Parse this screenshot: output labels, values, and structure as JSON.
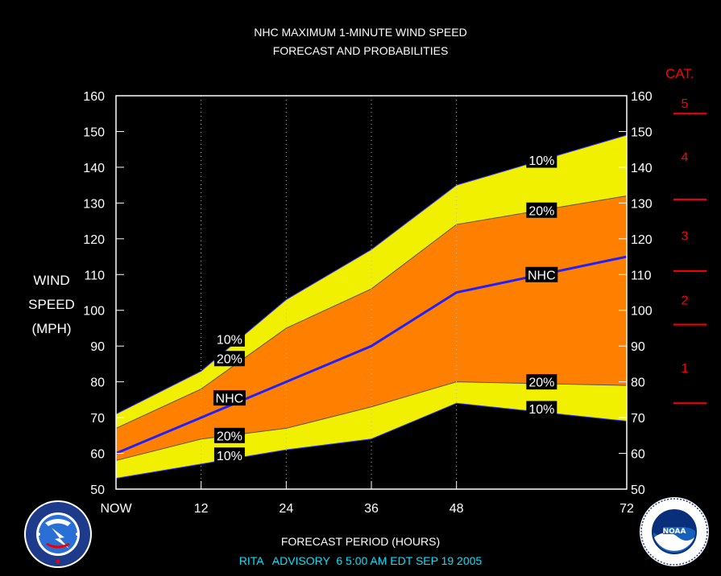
{
  "header": {
    "title_line1": "NHC MAXIMUM 1-MINUTE WIND SPEED",
    "title_line2": "FORECAST AND PROBABILITIES"
  },
  "y_axis_label": [
    "WIND",
    "SPEED",
    "(MPH)"
  ],
  "x_axis_title": "FORECAST PERIOD (HOURS)",
  "advisory_line": "RITA   ADVISORY  6 5:00 AM EDT SEP 19 2005",
  "category_header": "CAT.",
  "colors": {
    "background": "#000000",
    "outer_band": "#f0f000",
    "inner_band": "#ff8000",
    "nhc_line": "#2020ff",
    "category_marks": "#ff0000",
    "advisory_text": "#00e5ff"
  },
  "chart_data": {
    "type": "area",
    "x": [
      0,
      12,
      24,
      36,
      48,
      72
    ],
    "x_tick_labels": [
      "NOW",
      "12",
      "24",
      "36",
      "48",
      "72"
    ],
    "xlim": [
      0,
      72
    ],
    "ylim": [
      50,
      160
    ],
    "y_ticks": [
      50,
      60,
      70,
      80,
      90,
      100,
      110,
      120,
      130,
      140,
      150,
      160
    ],
    "vertical_grid_at": [
      12,
      24,
      36,
      48
    ],
    "series": [
      {
        "name": "10%",
        "role": "upper_outer",
        "values": [
          71,
          83,
          103,
          117,
          135,
          149
        ]
      },
      {
        "name": "20%",
        "role": "upper_inner",
        "values": [
          67,
          78,
          95,
          106,
          124,
          132
        ]
      },
      {
        "name": "NHC",
        "role": "forecast",
        "values": [
          60,
          70,
          80,
          90,
          105,
          115
        ]
      },
      {
        "name": "20%",
        "role": "lower_inner",
        "values": [
          58,
          64,
          67,
          73,
          80,
          79
        ]
      },
      {
        "name": "10%",
        "role": "lower_outer",
        "values": [
          53,
          57,
          61,
          64,
          74,
          69
        ]
      }
    ],
    "labels": [
      {
        "text": "10%",
        "x": 16,
        "y": 92
      },
      {
        "text": "20%",
        "x": 16,
        "y": 86.5
      },
      {
        "text": "NHC",
        "x": 16,
        "y": 75.5
      },
      {
        "text": "20%",
        "x": 16,
        "y": 65
      },
      {
        "text": "10%",
        "x": 16,
        "y": 59.5
      },
      {
        "text": "10%",
        "x": 60,
        "y": 142
      },
      {
        "text": "20%",
        "x": 60,
        "y": 128
      },
      {
        "text": "NHC",
        "x": 60,
        "y": 110
      },
      {
        "text": "20%",
        "x": 60,
        "y": 80
      },
      {
        "text": "10%",
        "x": 60,
        "y": 72.5
      }
    ],
    "categories": [
      {
        "label": "1",
        "boundary": 74,
        "label_y": 84
      },
      {
        "label": "2",
        "boundary": 96,
        "label_y": 103
      },
      {
        "label": "3",
        "boundary": 111,
        "label_y": 121
      },
      {
        "label": "4",
        "boundary": 131,
        "label_y": 143
      },
      {
        "label": "5",
        "boundary": 155,
        "label_y": 158
      }
    ]
  }
}
